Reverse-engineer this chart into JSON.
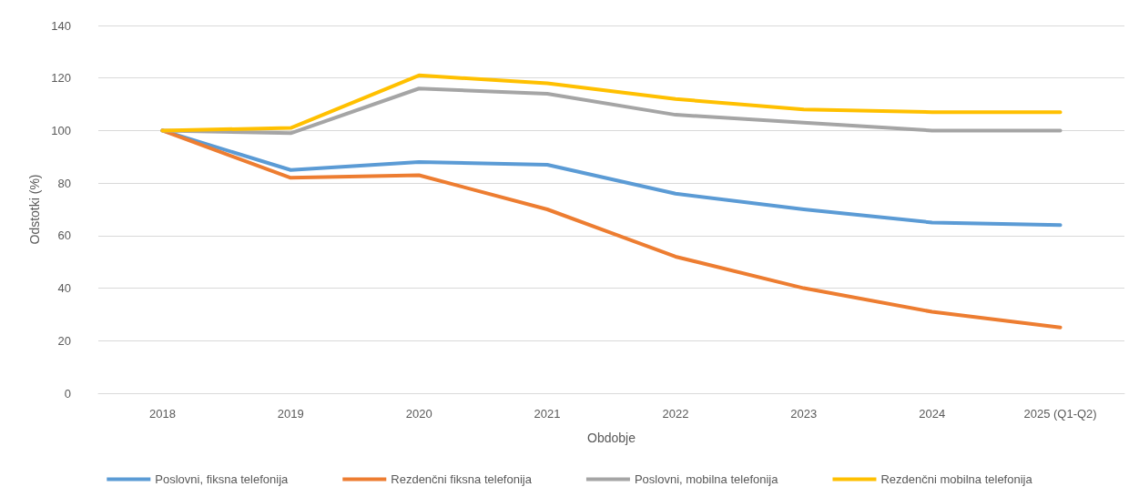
{
  "chart_data": {
    "type": "line",
    "xlabel": "Obdobje",
    "ylabel": "Odstotki (%)",
    "categories": [
      "2018",
      "2019",
      "2020",
      "2021",
      "2022",
      "2023",
      "2024",
      "2025 (Q1-Q2)"
    ],
    "series": [
      {
        "name": "Poslovni, fiksna telefonija",
        "color": "#5b9bd5",
        "values": [
          100,
          85,
          88,
          87,
          76,
          70,
          65,
          64
        ]
      },
      {
        "name": "Rezdenčni fiksna telefonija",
        "color": "#ed7d31",
        "values": [
          100,
          82,
          83,
          70,
          52,
          40,
          31,
          25
        ]
      },
      {
        "name": "Poslovni, mobilna telefonija",
        "color": "#a5a5a5",
        "values": [
          100,
          99,
          116,
          114,
          106,
          103,
          100,
          100
        ]
      },
      {
        "name": "Rezdenčni mobilna telefonija",
        "color": "#ffc000",
        "values": [
          100,
          101,
          121,
          118,
          112,
          108,
          107,
          107
        ]
      }
    ],
    "ylim": [
      0,
      140
    ],
    "yticks": [
      0,
      20,
      40,
      60,
      80,
      100,
      120,
      140
    ],
    "grid": "y",
    "legend": "bottom",
    "marker": "none",
    "line_style": "solid"
  }
}
